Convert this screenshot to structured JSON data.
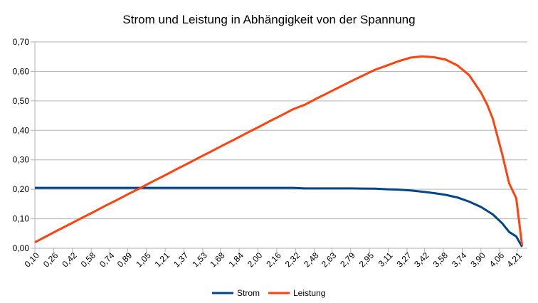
{
  "chart_data": {
    "type": "line",
    "title": "Strom und Leistung in Abhängigkeit von der Spannung",
    "xlabel": "",
    "ylabel": "",
    "ylim": [
      0,
      0.7
    ],
    "y_ticks": [
      "0,00",
      "0,10",
      "0,20",
      "0,30",
      "0,40",
      "0,50",
      "0,60",
      "0,70"
    ],
    "x_ticks": [
      "0,10",
      "0,26",
      "0,42",
      "0,58",
      "0,74",
      "0,89",
      "1,05",
      "1,21",
      "1,37",
      "1,53",
      "1,68",
      "1,84",
      "2,00",
      "2,16",
      "2,32",
      "2,48",
      "2,63",
      "2,79",
      "2,95",
      "3,11",
      "3,27",
      "3,42",
      "3,58",
      "3,74",
      "3,90",
      "4,06",
      "4,21"
    ],
    "grid": true,
    "legend_position": "bottom",
    "series": [
      {
        "name": "Strom",
        "color": "#004586",
        "points": [
          [
            0.1,
            0.205
          ],
          [
            0.5,
            0.205
          ],
          [
            1.0,
            0.205
          ],
          [
            1.5,
            0.205
          ],
          [
            2.0,
            0.205
          ],
          [
            2.3,
            0.205
          ],
          [
            2.4,
            0.203
          ],
          [
            2.8,
            0.203
          ],
          [
            3.0,
            0.202
          ],
          [
            3.1,
            0.2
          ],
          [
            3.2,
            0.199
          ],
          [
            3.3,
            0.196
          ],
          [
            3.4,
            0.192
          ],
          [
            3.5,
            0.187
          ],
          [
            3.6,
            0.181
          ],
          [
            3.7,
            0.172
          ],
          [
            3.8,
            0.158
          ],
          [
            3.9,
            0.14
          ],
          [
            4.0,
            0.115
          ],
          [
            4.08,
            0.085
          ],
          [
            4.14,
            0.055
          ],
          [
            4.2,
            0.04
          ],
          [
            4.25,
            0.005
          ]
        ]
      },
      {
        "name": "Leistung",
        "color": "#ff420e",
        "points": [
          [
            0.1,
            0.02
          ],
          [
            0.2,
            0.041
          ],
          [
            0.3,
            0.062
          ],
          [
            0.4,
            0.082
          ],
          [
            0.5,
            0.103
          ],
          [
            0.6,
            0.123
          ],
          [
            0.7,
            0.144
          ],
          [
            0.8,
            0.164
          ],
          [
            0.9,
            0.185
          ],
          [
            1.0,
            0.205
          ],
          [
            1.1,
            0.226
          ],
          [
            1.2,
            0.246
          ],
          [
            1.3,
            0.267
          ],
          [
            1.4,
            0.287
          ],
          [
            1.5,
            0.308
          ],
          [
            1.6,
            0.328
          ],
          [
            1.7,
            0.349
          ],
          [
            1.8,
            0.369
          ],
          [
            1.9,
            0.39
          ],
          [
            2.0,
            0.41
          ],
          [
            2.1,
            0.431
          ],
          [
            2.2,
            0.451
          ],
          [
            2.3,
            0.472
          ],
          [
            2.4,
            0.487
          ],
          [
            2.5,
            0.508
          ],
          [
            2.6,
            0.528
          ],
          [
            2.7,
            0.548
          ],
          [
            2.8,
            0.568
          ],
          [
            2.9,
            0.587
          ],
          [
            3.0,
            0.606
          ],
          [
            3.1,
            0.62
          ],
          [
            3.2,
            0.635
          ],
          [
            3.3,
            0.647
          ],
          [
            3.4,
            0.651
          ],
          [
            3.5,
            0.648
          ],
          [
            3.6,
            0.64
          ],
          [
            3.7,
            0.62
          ],
          [
            3.8,
            0.587
          ],
          [
            3.9,
            0.528
          ],
          [
            3.95,
            0.49
          ],
          [
            4.0,
            0.44
          ],
          [
            4.08,
            0.32
          ],
          [
            4.14,
            0.22
          ],
          [
            4.2,
            0.17
          ],
          [
            4.25,
            0.01
          ]
        ]
      }
    ]
  }
}
